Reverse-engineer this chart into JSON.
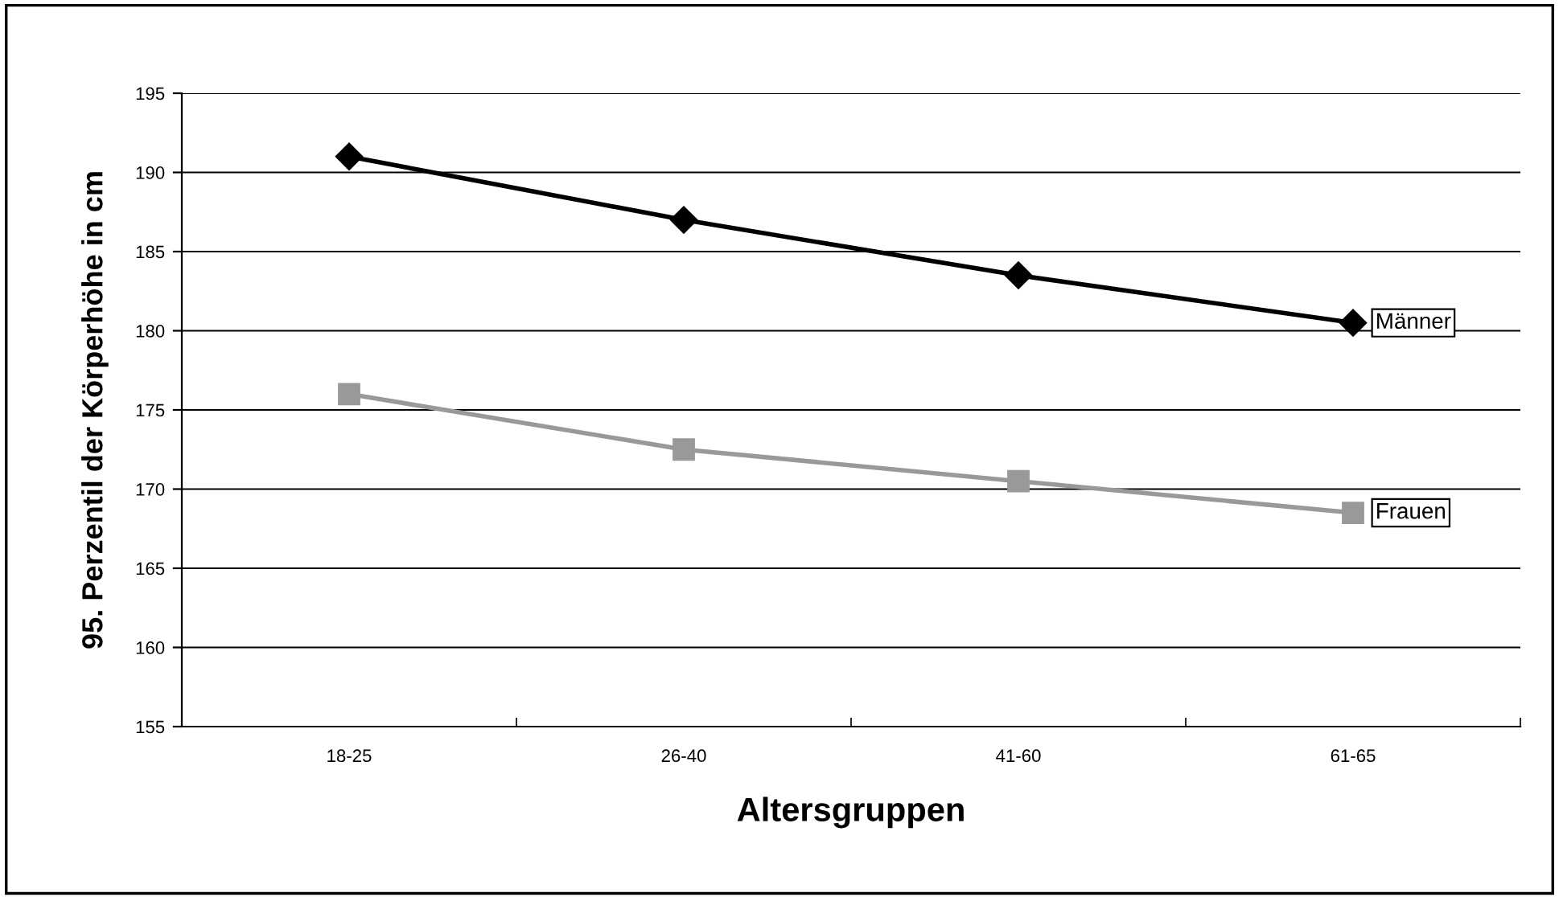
{
  "chart_data": {
    "type": "line",
    "xlabel": "Altersgruppen",
    "ylabel": "95. Perzentil der Körperhöhe in cm",
    "categories": [
      "18-25",
      "26-40",
      "41-60",
      "61-65"
    ],
    "series": [
      {
        "name": "Männer",
        "color": "#000000",
        "marker": "diamond",
        "values": [
          191,
          187,
          183.5,
          180.5
        ]
      },
      {
        "name": "Frauen",
        "color": "#999999",
        "marker": "square",
        "values": [
          176,
          172.5,
          170.5,
          168.5
        ]
      }
    ],
    "ylim": [
      155,
      195
    ],
    "yticks": [
      155,
      160,
      165,
      170,
      175,
      180,
      185,
      190,
      195
    ],
    "grid": "y",
    "line_style": "solid"
  }
}
